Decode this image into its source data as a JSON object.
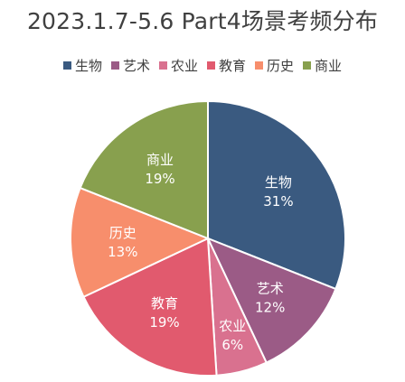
{
  "chart_data": {
    "type": "pie",
    "title": "2023.1.7-5.6 Part4场景考频分布",
    "categories": [
      "生物",
      "艺术",
      "农业",
      "教育",
      "历史",
      "商业"
    ],
    "values": [
      31,
      12,
      6,
      19,
      13,
      19
    ],
    "labels": [
      "31%",
      "12%",
      "6%",
      "19%",
      "13%",
      "19%"
    ],
    "colors": [
      "#3A5A80",
      "#9B5B86",
      "#D9718F",
      "#E15A6E",
      "#F78E6C",
      "#88A04E"
    ],
    "legend_position": "top"
  }
}
